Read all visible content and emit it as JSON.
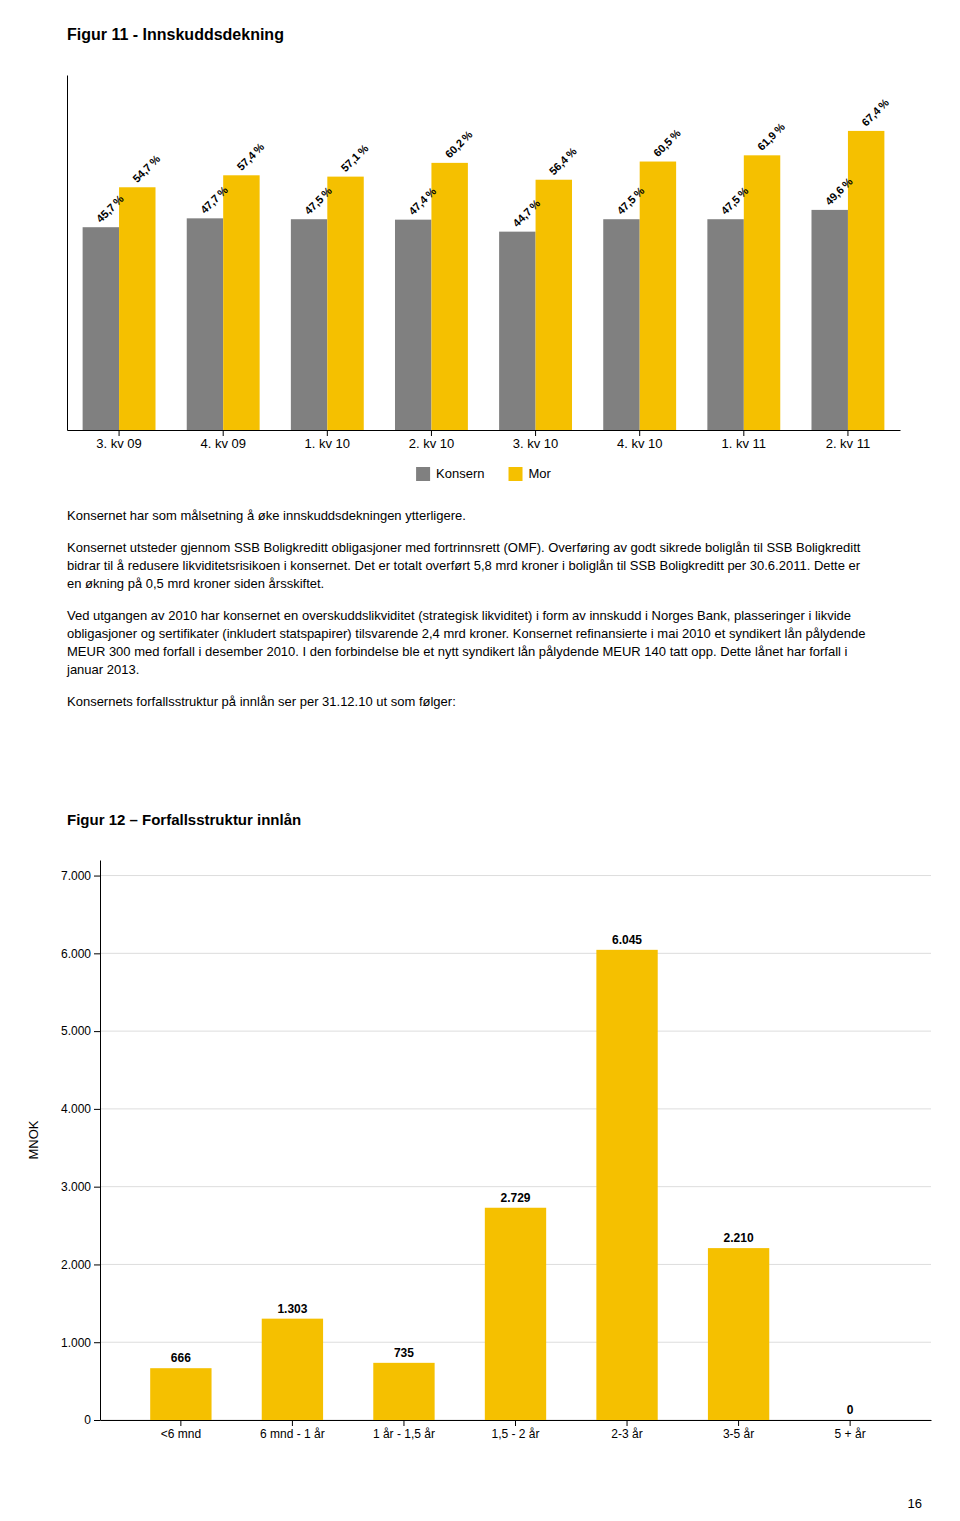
{
  "chart_data": [
    {
      "type": "bar",
      "title": "Figur 11 - Innskuddsdekning",
      "categories": [
        "3. kv 09",
        "4. kv 09",
        "1. kv 10",
        "2. kv 10",
        "3. kv 10",
        "4. kv 10",
        "1. kv 11",
        "2. kv 11"
      ],
      "series": [
        {
          "name": "Konsern",
          "color": "#808080",
          "values": [
            45.7,
            47.7,
            47.5,
            47.4,
            44.7,
            47.5,
            47.5,
            49.6
          ],
          "value_labels": [
            "45,7 %",
            "47,7 %",
            "47,5 %",
            "47,4 %",
            "44,7 %",
            "47,5 %",
            "47,5 %",
            "49,6 %"
          ]
        },
        {
          "name": "Mor",
          "color": "#F5C000",
          "values": [
            54.7,
            57.4,
            57.1,
            60.2,
            56.4,
            60.5,
            61.9,
            67.4
          ],
          "value_labels": [
            "54,7 %",
            "57,4 %",
            "57,1 %",
            "60,2 %",
            "56,4 %",
            "60,5 %",
            "61,9 %",
            "67,4 %"
          ]
        }
      ],
      "ylim": [
        0,
        80
      ],
      "tick_labels": "x",
      "data_labels": true,
      "legend": "bottom",
      "grid": false,
      "annotations": [
        "Konsernet har som målsetning å øke innskuddsdekningen ytterligere.",
        "Konsernet utsteder gjennom SSB Boligkreditt obligasjoner med fortrinnsrett (OMF). Overføring av godt sikrede boliglån til SSB Boligkreditt bidrar til å redusere likviditetsrisikoen i konsernet. Det er totalt overført 5,8 mrd kroner i boliglån til SSB Boligkreditt per 30.6.2011. Dette er en økning på 0,5 mrd kroner siden årsskiftet.",
        "Ved utgangen av 2010 har konsernet en overskuddslikviditet (strategisk likviditet) i form av innskudd i Norges Bank, plasseringer i likvide obligasjoner og sertifikater (inkludert statspapirer) tilsvarende 2,4 mrd kroner. Konsernet refinansierte i mai 2010 et syndikert lån pålydende MEUR 300 med forfall i desember 2010. I den forbindelse ble et nytt syndikert lån pålydende MEUR 140 tatt opp. Dette lånet har forfall i januar 2013.",
        "Konsernets forfallsstruktur på innlån ser per 31.12.10 ut som følger:"
      ]
    },
    {
      "type": "bar",
      "title": "Figur 12 – Forfallsstruktur innlån",
      "categories": [
        "<6 mnd",
        "6 mnd - 1 år",
        "1 år - 1,5 år",
        "1,5 - 2 år",
        "2-3 år",
        "3-5 år",
        "5 + år"
      ],
      "values": [
        666,
        1303,
        735,
        2729,
        6045,
        2210,
        0
      ],
      "value_labels": [
        "666",
        "1.303",
        "735",
        "2.729",
        "6.045",
        "2.210",
        "0"
      ],
      "color": "#F5C000",
      "ylabel": "MNOK",
      "ylim": [
        0,
        7200
      ],
      "yticks": [
        0,
        {
          "value": 1000,
          "label": "1.000"
        },
        {
          "value": 2000,
          "label": "2.000"
        },
        {
          "value": 3000,
          "label": "3.000"
        },
        {
          "value": 4000,
          "label": "4.000"
        },
        {
          "value": 5000,
          "label": "5.000"
        },
        {
          "value": 6000,
          "label": "6.000"
        },
        {
          "value": 7000,
          "label": "7.000"
        }
      ],
      "grid": true,
      "data_labels": true,
      "annotations": [
        "16"
      ]
    }
  ]
}
